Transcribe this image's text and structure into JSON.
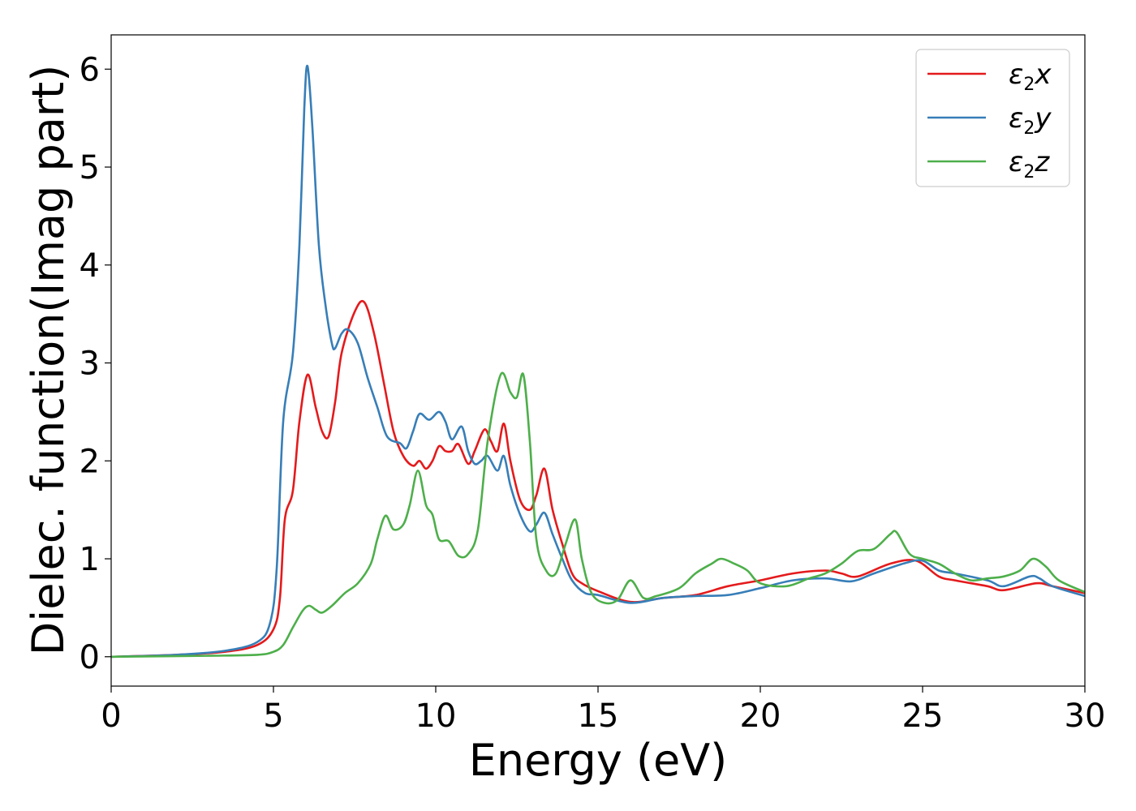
{
  "chart_data": {
    "type": "line",
    "title": "",
    "xlabel": "Energy (eV)",
    "ylabel": "Dielec. function(Imag part)",
    "xlim": [
      0,
      30
    ],
    "ylim": [
      -0.3,
      6.35
    ],
    "xticks": [
      0,
      5,
      10,
      15,
      20,
      25,
      30
    ],
    "yticks": [
      0,
      1,
      2,
      3,
      4,
      5,
      6
    ],
    "grid": false,
    "legend_position": "top-right",
    "series": [
      {
        "legend_base": "ε",
        "legend_sub": "2",
        "legend_suffix": "x",
        "color": "#e41a1c",
        "points": [
          [
            0,
            0
          ],
          [
            2,
            0.02
          ],
          [
            3.5,
            0.05
          ],
          [
            4.5,
            0.12
          ],
          [
            5.0,
            0.28
          ],
          [
            5.2,
            0.6
          ],
          [
            5.35,
            1.4
          ],
          [
            5.6,
            1.7
          ],
          [
            5.8,
            2.4
          ],
          [
            6.05,
            2.88
          ],
          [
            6.3,
            2.55
          ],
          [
            6.5,
            2.3
          ],
          [
            6.7,
            2.25
          ],
          [
            6.9,
            2.6
          ],
          [
            7.1,
            3.1
          ],
          [
            7.5,
            3.52
          ],
          [
            7.8,
            3.62
          ],
          [
            8.1,
            3.3
          ],
          [
            8.4,
            2.8
          ],
          [
            8.7,
            2.3
          ],
          [
            9.0,
            2.05
          ],
          [
            9.3,
            1.95
          ],
          [
            9.5,
            2.0
          ],
          [
            9.7,
            1.92
          ],
          [
            9.9,
            2.0
          ],
          [
            10.1,
            2.15
          ],
          [
            10.3,
            2.1
          ],
          [
            10.5,
            2.1
          ],
          [
            10.7,
            2.17
          ],
          [
            11.0,
            1.97
          ],
          [
            11.2,
            2.1
          ],
          [
            11.5,
            2.32
          ],
          [
            11.7,
            2.2
          ],
          [
            11.9,
            2.1
          ],
          [
            12.1,
            2.38
          ],
          [
            12.3,
            2.0
          ],
          [
            12.6,
            1.6
          ],
          [
            12.9,
            1.5
          ],
          [
            13.1,
            1.65
          ],
          [
            13.35,
            1.92
          ],
          [
            13.6,
            1.5
          ],
          [
            13.9,
            1.15
          ],
          [
            14.2,
            0.85
          ],
          [
            14.5,
            0.75
          ],
          [
            15,
            0.67
          ],
          [
            16,
            0.56
          ],
          [
            17,
            0.6
          ],
          [
            18,
            0.63
          ],
          [
            19,
            0.72
          ],
          [
            20,
            0.78
          ],
          [
            21,
            0.85
          ],
          [
            22,
            0.88
          ],
          [
            22.5,
            0.85
          ],
          [
            23,
            0.82
          ],
          [
            24,
            0.95
          ],
          [
            24.8,
            0.98
          ],
          [
            25.5,
            0.82
          ],
          [
            26,
            0.78
          ],
          [
            27,
            0.72
          ],
          [
            27.5,
            0.68
          ],
          [
            28.5,
            0.75
          ],
          [
            29,
            0.72
          ],
          [
            30,
            0.65
          ]
        ]
      },
      {
        "legend_base": "ε",
        "legend_sub": "2",
        "legend_suffix": "y",
        "color": "#377eb8",
        "points": [
          [
            0,
            0
          ],
          [
            2,
            0.02
          ],
          [
            3.5,
            0.06
          ],
          [
            4.5,
            0.15
          ],
          [
            4.9,
            0.35
          ],
          [
            5.1,
            0.9
          ],
          [
            5.3,
            2.4
          ],
          [
            5.6,
            3.1
          ],
          [
            5.8,
            4.2
          ],
          [
            5.95,
            5.6
          ],
          [
            6.05,
            6.03
          ],
          [
            6.2,
            5.4
          ],
          [
            6.4,
            4.2
          ],
          [
            6.6,
            3.6
          ],
          [
            6.8,
            3.2
          ],
          [
            6.9,
            3.15
          ],
          [
            7.1,
            3.3
          ],
          [
            7.3,
            3.34
          ],
          [
            7.6,
            3.2
          ],
          [
            7.9,
            2.85
          ],
          [
            8.2,
            2.55
          ],
          [
            8.5,
            2.25
          ],
          [
            8.9,
            2.18
          ],
          [
            9.1,
            2.13
          ],
          [
            9.3,
            2.3
          ],
          [
            9.5,
            2.48
          ],
          [
            9.8,
            2.42
          ],
          [
            10.1,
            2.5
          ],
          [
            10.3,
            2.4
          ],
          [
            10.5,
            2.22
          ],
          [
            10.8,
            2.35
          ],
          [
            11.0,
            2.1
          ],
          [
            11.2,
            1.97
          ],
          [
            11.4,
            2.0
          ],
          [
            11.6,
            2.05
          ],
          [
            11.9,
            1.9
          ],
          [
            12.1,
            2.05
          ],
          [
            12.3,
            1.75
          ],
          [
            12.6,
            1.45
          ],
          [
            12.9,
            1.28
          ],
          [
            13.1,
            1.35
          ],
          [
            13.35,
            1.47
          ],
          [
            13.6,
            1.25
          ],
          [
            13.9,
            1.0
          ],
          [
            14.2,
            0.78
          ],
          [
            14.6,
            0.65
          ],
          [
            15,
            0.63
          ],
          [
            16,
            0.55
          ],
          [
            17,
            0.6
          ],
          [
            18,
            0.62
          ],
          [
            19,
            0.63
          ],
          [
            20,
            0.7
          ],
          [
            21,
            0.78
          ],
          [
            22,
            0.8
          ],
          [
            22.8,
            0.77
          ],
          [
            23.5,
            0.85
          ],
          [
            24.5,
            0.96
          ],
          [
            25,
            0.98
          ],
          [
            25.5,
            0.88
          ],
          [
            26,
            0.85
          ],
          [
            27,
            0.78
          ],
          [
            27.5,
            0.72
          ],
          [
            28.3,
            0.82
          ],
          [
            28.6,
            0.8
          ],
          [
            29,
            0.72
          ],
          [
            30,
            0.62
          ]
        ]
      },
      {
        "legend_base": "ε",
        "legend_sub": "2",
        "legend_suffix": "z",
        "color": "#4daf4a",
        "points": [
          [
            0,
            0
          ],
          [
            3,
            0.01
          ],
          [
            4.5,
            0.02
          ],
          [
            5.0,
            0.05
          ],
          [
            5.3,
            0.12
          ],
          [
            5.6,
            0.3
          ],
          [
            5.9,
            0.47
          ],
          [
            6.1,
            0.52
          ],
          [
            6.3,
            0.48
          ],
          [
            6.5,
            0.45
          ],
          [
            6.8,
            0.52
          ],
          [
            7.2,
            0.65
          ],
          [
            7.6,
            0.75
          ],
          [
            8.0,
            0.95
          ],
          [
            8.2,
            1.2
          ],
          [
            8.45,
            1.44
          ],
          [
            8.7,
            1.3
          ],
          [
            9.0,
            1.35
          ],
          [
            9.2,
            1.55
          ],
          [
            9.45,
            1.9
          ],
          [
            9.7,
            1.55
          ],
          [
            9.9,
            1.45
          ],
          [
            10.1,
            1.2
          ],
          [
            10.4,
            1.18
          ],
          [
            10.7,
            1.03
          ],
          [
            11.0,
            1.05
          ],
          [
            11.3,
            1.3
          ],
          [
            11.6,
            2.2
          ],
          [
            12.0,
            2.88
          ],
          [
            12.3,
            2.7
          ],
          [
            12.5,
            2.65
          ],
          [
            12.7,
            2.88
          ],
          [
            12.9,
            2.2
          ],
          [
            13.1,
            1.2
          ],
          [
            13.4,
            0.88
          ],
          [
            13.7,
            0.85
          ],
          [
            14.0,
            1.15
          ],
          [
            14.3,
            1.4
          ],
          [
            14.5,
            1.0
          ],
          [
            14.8,
            0.65
          ],
          [
            15.2,
            0.55
          ],
          [
            15.6,
            0.58
          ],
          [
            16.0,
            0.78
          ],
          [
            16.4,
            0.6
          ],
          [
            16.8,
            0.62
          ],
          [
            17.5,
            0.7
          ],
          [
            18.0,
            0.85
          ],
          [
            18.5,
            0.95
          ],
          [
            18.8,
            1.0
          ],
          [
            19.2,
            0.95
          ],
          [
            19.6,
            0.88
          ],
          [
            20.0,
            0.75
          ],
          [
            20.8,
            0.72
          ],
          [
            21.5,
            0.8
          ],
          [
            22.0,
            0.85
          ],
          [
            22.5,
            0.95
          ],
          [
            23.0,
            1.08
          ],
          [
            23.5,
            1.1
          ],
          [
            24.0,
            1.25
          ],
          [
            24.2,
            1.27
          ],
          [
            24.6,
            1.05
          ],
          [
            25.0,
            1.0
          ],
          [
            25.5,
            0.95
          ],
          [
            26.0,
            0.85
          ],
          [
            26.5,
            0.78
          ],
          [
            27.0,
            0.8
          ],
          [
            27.5,
            0.82
          ],
          [
            28.0,
            0.88
          ],
          [
            28.4,
            1.0
          ],
          [
            28.8,
            0.92
          ],
          [
            29.2,
            0.78
          ],
          [
            30,
            0.66
          ]
        ]
      }
    ]
  }
}
